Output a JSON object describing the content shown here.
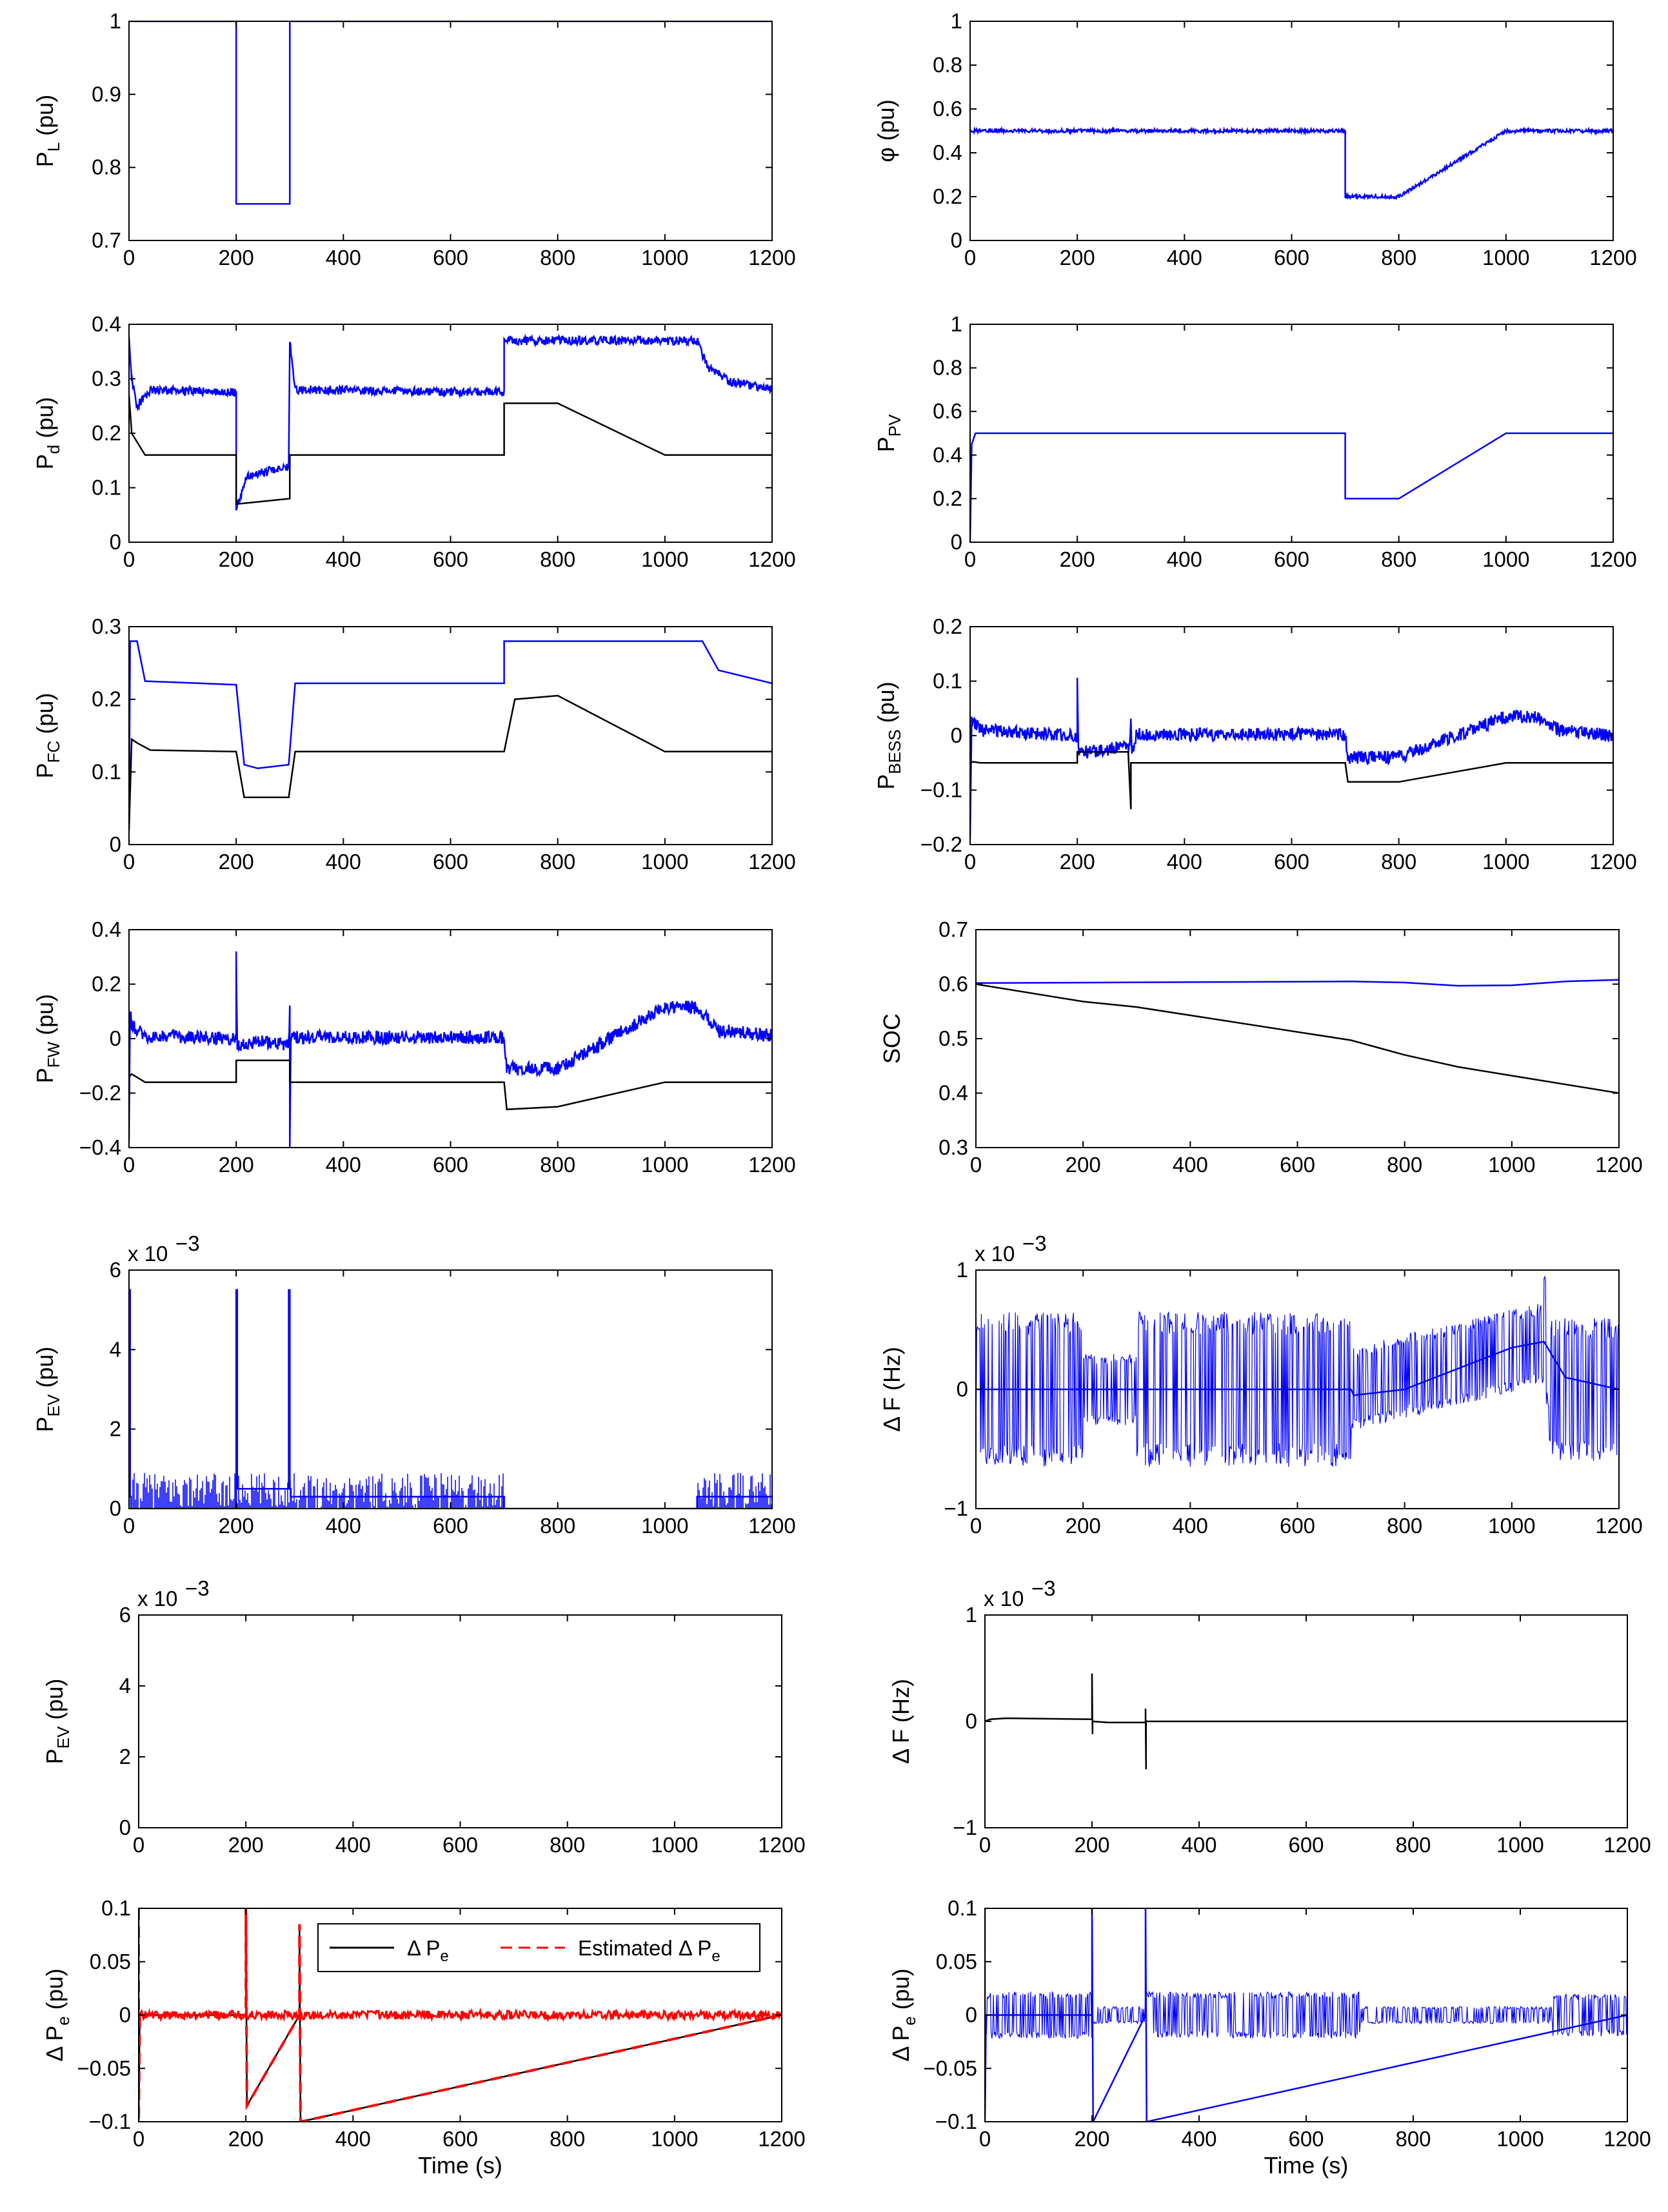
{
  "figure": {
    "description_free": true
  },
  "colors": {
    "blue": "#0000ff",
    "black": "#000000",
    "red": "#ff0000"
  },
  "chart_data": [
    {
      "id": "pl",
      "type": "line",
      "ylabel": {
        "main": "P",
        "sub": "L",
        "unit": " (pu)"
      },
      "xlim": [
        0,
        1200
      ],
      "ylim": [
        0.7,
        1
      ],
      "xticks": [
        "0",
        "200",
        "400",
        "600",
        "800",
        "1000",
        "1200"
      ],
      "yticks": [
        "0.7",
        "0.8",
        "0.9",
        "1"
      ],
      "series": [
        {
          "color": "blue",
          "x": [
            0,
            200,
            200,
            300,
            300,
            1200
          ],
          "y": [
            1,
            1,
            0.75,
            0.75,
            1,
            1
          ]
        }
      ]
    },
    {
      "id": "phi",
      "type": "line",
      "ylabel": {
        "main": "φ",
        "sub": "",
        "unit": " (pu)"
      },
      "xlim": [
        0,
        1200
      ],
      "ylim": [
        0,
        1
      ],
      "xticks": [
        "0",
        "200",
        "400",
        "600",
        "800",
        "1000",
        "1200"
      ],
      "yticks": [
        "0",
        "0.2",
        "0.4",
        "0.6",
        "0.8",
        "1"
      ],
      "series": [
        {
          "color": "blue",
          "noise": 0.008,
          "x": [
            0,
            700,
            700,
            800,
            1000,
            1200
          ],
          "y": [
            0.5,
            0.5,
            0.2,
            0.2,
            0.5,
            0.5
          ]
        }
      ]
    },
    {
      "id": "pd",
      "type": "line",
      "ylabel": {
        "main": "P",
        "sub": "d",
        "unit": " (pu)"
      },
      "xlim": [
        0,
        1200
      ],
      "ylim": [
        0,
        0.4
      ],
      "xticks": [
        "0",
        "200",
        "400",
        "600",
        "800",
        "1000",
        "1200"
      ],
      "yticks": [
        "0",
        "0.1",
        "0.2",
        "0.3",
        "0.4"
      ],
      "series": [
        {
          "color": "blue",
          "noise": 0.008,
          "x": [
            0,
            5,
            15,
            40,
            200,
            200,
            220,
            298,
            300,
            310,
            700,
            700,
            1060,
            1080,
            1120,
            1200
          ],
          "y": [
            0.37,
            0.3,
            0.25,
            0.28,
            0.275,
            0.06,
            0.12,
            0.14,
            0.37,
            0.28,
            0.275,
            0.37,
            0.37,
            0.32,
            0.295,
            0.28
          ]
        },
        {
          "color": "black",
          "x": [
            0,
            5,
            30,
            200,
            200,
            300,
            300,
            700,
            700,
            800,
            1000,
            1200
          ],
          "y": [
            0.27,
            0.2,
            0.16,
            0.16,
            0.07,
            0.08,
            0.16,
            0.16,
            0.255,
            0.255,
            0.16,
            0.16
          ]
        }
      ]
    },
    {
      "id": "ppv",
      "type": "line",
      "ylabel": {
        "main": "P",
        "sub": "PV",
        "unit": ""
      },
      "xlim": [
        0,
        1200
      ],
      "ylim": [
        0,
        1
      ],
      "xticks": [
        "0",
        "200",
        "400",
        "600",
        "800",
        "1000",
        "1200"
      ],
      "yticks": [
        "0",
        "0.2",
        "0.4",
        "0.6",
        "0.8",
        "1"
      ],
      "series": [
        {
          "color": "blue",
          "x": [
            0,
            3,
            10,
            700,
            700,
            800,
            1000,
            1200
          ],
          "y": [
            0,
            0.45,
            0.5,
            0.5,
            0.2,
            0.2,
            0.5,
            0.5
          ]
        }
      ]
    },
    {
      "id": "pfc",
      "type": "line",
      "ylabel": {
        "main": "P",
        "sub": "FC",
        "unit": " (pu)"
      },
      "xlim": [
        0,
        1200
      ],
      "ylim": [
        0,
        0.3
      ],
      "xticks": [
        "0",
        "200",
        "400",
        "600",
        "800",
        "1000",
        "1200"
      ],
      "yticks": [
        "0",
        "0.1",
        "0.2",
        "0.3"
      ],
      "series": [
        {
          "color": "blue",
          "x": [
            0,
            2,
            15,
            30,
            200,
            215,
            240,
            298,
            310,
            700,
            700,
            1070,
            1100,
            1200
          ],
          "y": [
            0.02,
            0.28,
            0.28,
            0.225,
            0.22,
            0.11,
            0.105,
            0.11,
            0.222,
            0.222,
            0.28,
            0.28,
            0.24,
            0.222
          ]
        },
        {
          "color": "black",
          "x": [
            0,
            5,
            15,
            40,
            200,
            215,
            298,
            310,
            700,
            720,
            800,
            1000,
            1200
          ],
          "y": [
            0.02,
            0.145,
            0.14,
            0.13,
            0.128,
            0.065,
            0.065,
            0.128,
            0.128,
            0.2,
            0.205,
            0.128,
            0.128
          ]
        }
      ]
    },
    {
      "id": "pbess",
      "type": "line",
      "ylabel": {
        "main": "P",
        "sub": "BESS",
        "unit": " (pu)"
      },
      "xlim": [
        0,
        1200
      ],
      "ylim": [
        -0.2,
        0.2
      ],
      "xticks": [
        "0",
        "200",
        "400",
        "600",
        "800",
        "1000",
        "1200"
      ],
      "yticks": [
        "−0.2",
        "−0.1",
        "0",
        "0.1",
        "0.2"
      ],
      "series": [
        {
          "color": "blue",
          "noise": 0.012,
          "x": [
            0,
            3,
            20,
            200,
            200,
            202,
            205,
            220,
            298,
            300,
            302,
            310,
            700,
            705,
            800,
            1000,
            1060,
            1100,
            1200
          ],
          "y": [
            -0.2,
            0.03,
            0.01,
            0.0,
            0.105,
            -0.02,
            -0.03,
            -0.03,
            -0.02,
            0.03,
            -0.03,
            0.002,
            0.002,
            -0.04,
            -0.04,
            0.035,
            0.035,
            0.01,
            0.0
          ]
        },
        {
          "color": "black",
          "x": [
            0,
            5,
            20,
            200,
            200,
            295,
            300,
            300,
            302,
            310,
            700,
            705,
            800,
            1000,
            1200
          ],
          "y": [
            -0.05,
            -0.048,
            -0.05,
            -0.05,
            -0.03,
            -0.03,
            -0.135,
            -0.05,
            -0.05,
            -0.05,
            -0.05,
            -0.085,
            -0.085,
            -0.05,
            -0.05
          ]
        }
      ]
    },
    {
      "id": "pfw",
      "type": "line",
      "ylabel": {
        "main": "P",
        "sub": "FW",
        "unit": " (pu)"
      },
      "xlim": [
        0,
        1200
      ],
      "ylim": [
        -0.4,
        0.4
      ],
      "xticks": [
        "0",
        "200",
        "400",
        "600",
        "800",
        "1000",
        "1200"
      ],
      "yticks": [
        "−0.4",
        "−0.2",
        "0",
        "0.2",
        "0.4"
      ],
      "series": [
        {
          "color": "blue",
          "noise": 0.025,
          "x": [
            0,
            2,
            5,
            30,
            200,
            200,
            202,
            205,
            240,
            298,
            300,
            300,
            302,
            310,
            700,
            705,
            800,
            1000,
            1060,
            1100,
            1200
          ],
          "y": [
            -0.4,
            0.1,
            0.05,
            0.01,
            0.0,
            0.31,
            -0.02,
            -0.03,
            -0.01,
            -0.02,
            0.1,
            -0.4,
            0.0,
            0.005,
            0.005,
            -0.11,
            -0.11,
            0.115,
            0.115,
            0.03,
            0.01
          ]
        },
        {
          "color": "black",
          "x": [
            0,
            5,
            30,
            200,
            200,
            300,
            300,
            700,
            705,
            800,
            1000,
            1200
          ],
          "y": [
            -0.14,
            -0.13,
            -0.16,
            -0.16,
            -0.08,
            -0.08,
            -0.16,
            -0.16,
            -0.26,
            -0.25,
            -0.16,
            -0.16
          ]
        }
      ]
    },
    {
      "id": "soc",
      "type": "line",
      "ylabel": {
        "main": "SOC",
        "sub": "",
        "unit": ""
      },
      "xlim": [
        0,
        1200
      ],
      "ylim": [
        0.3,
        0.7
      ],
      "xticks": [
        "0",
        "200",
        "400",
        "600",
        "800",
        "1000",
        "1200"
      ],
      "yticks": [
        "0.3",
        "0.4",
        "0.5",
        "0.6",
        "0.7"
      ],
      "series": [
        {
          "color": "blue",
          "x": [
            0,
            700,
            800,
            900,
            1000,
            1100,
            1200
          ],
          "y": [
            0.602,
            0.605,
            0.603,
            0.597,
            0.598,
            0.605,
            0.608
          ]
        },
        {
          "color": "black",
          "x": [
            0,
            200,
            300,
            700,
            800,
            900,
            1000,
            1200
          ],
          "y": [
            0.6,
            0.568,
            0.558,
            0.497,
            0.47,
            0.448,
            0.432,
            0.4
          ]
        }
      ]
    },
    {
      "id": "pev1",
      "type": "line",
      "ylabel": {
        "main": "P",
        "sub": "EV",
        "unit": "  (pu)"
      },
      "exponent": "x 10",
      "xlim": [
        0,
        1200
      ],
      "ylim": [
        0,
        6
      ],
      "xticks": [
        "0",
        "200",
        "400",
        "600",
        "800",
        "1000",
        "1200"
      ],
      "yticks": [
        "0",
        "2",
        "4",
        "6"
      ],
      "series": [
        {
          "color": "blue",
          "x": [
            0,
            0,
            2,
            2,
            4,
            4,
            200,
            200,
            202,
            202,
            298,
            298,
            300,
            300,
            302,
            302,
            700,
            700,
            1060,
            1060,
            1200
          ],
          "y": [
            0,
            5.5,
            5.5,
            0.3,
            0.3,
            0,
            0,
            5.5,
            5.5,
            0.5,
            0.5,
            5.5,
            5.5,
            0.5,
            0.5,
            0.3,
            0.3,
            0,
            0,
            0.3,
            0.3
          ]
        }
      ]
    },
    {
      "id": "df1",
      "type": "line",
      "ylabel": {
        "main": "Δ F",
        "sub": "",
        "unit": "  (Hz)"
      },
      "exponent": "x 10",
      "xlim": [
        0,
        1200
      ],
      "ylim": [
        -1,
        1
      ],
      "xticks": [
        "0",
        "200",
        "400",
        "600",
        "800",
        "1000",
        "1200"
      ],
      "yticks": [
        "−1",
        "0",
        "1"
      ],
      "series": [
        {
          "color": "blue",
          "x": [
            0,
            200,
            300,
            700,
            705,
            800,
            1000,
            1060,
            1100,
            1200
          ],
          "y": [
            0,
            0,
            0,
            0,
            -0.05,
            0,
            0.35,
            0.4,
            0.1,
            0
          ]
        }
      ]
    },
    {
      "id": "pev2",
      "type": "line",
      "ylabel": {
        "main": "P",
        "sub": "EV",
        "unit": " (pu)"
      },
      "exponent": "x 10",
      "xlim": [
        0,
        1200
      ],
      "ylim": [
        0,
        6
      ],
      "xticks": [
        "0",
        "200",
        "400",
        "600",
        "800",
        "1000",
        "1200"
      ],
      "yticks": [
        "0",
        "2",
        "4",
        "6"
      ],
      "series": []
    },
    {
      "id": "df2",
      "type": "line",
      "ylabel": {
        "main": "Δ F",
        "sub": "",
        "unit": " (Hz)"
      },
      "exponent": "x 10",
      "xlim": [
        0,
        1200
      ],
      "ylim": [
        -1,
        1
      ],
      "xticks": [
        "0",
        "200",
        "400",
        "600",
        "800",
        "1000",
        "1200"
      ],
      "yticks": [
        "−1",
        "0",
        "1"
      ],
      "series": [
        {
          "color": "black",
          "x": [
            0,
            10,
            40,
            200,
            200,
            201,
            201,
            230,
            300,
            300,
            301,
            301,
            700,
            1200
          ],
          "y": [
            0,
            0.02,
            0.03,
            0.02,
            0.45,
            -0.12,
            0,
            -0.01,
            -0.01,
            0.12,
            -0.45,
            0,
            0,
            0
          ]
        }
      ]
    },
    {
      "id": "dpe1",
      "type": "line",
      "ylabel": {
        "main": "Δ P",
        "sub": "e",
        "unit": " (pu)"
      },
      "xlabel": "Time (s)",
      "xlim": [
        0,
        1200
      ],
      "ylim": [
        -0.1,
        0.1
      ],
      "xticks": [
        "0",
        "200",
        "400",
        "600",
        "800",
        "1000",
        "1200"
      ],
      "yticks": [
        "−0.1",
        "−0.05",
        "0",
        "0.05",
        "0.1"
      ],
      "legend": {
        "location": "top-right",
        "entries": [
          {
            "text": "Δ P",
            "sub": "e",
            "color": "black",
            "dash": false
          },
          {
            "text": "Estimated Δ P",
            "sub": "e",
            "color": "red",
            "dash": true
          }
        ]
      },
      "series": [
        {
          "color": "black",
          "x": [
            0,
            0,
            2,
            200,
            200,
            202,
            300,
            300,
            302,
            1200
          ],
          "y": [
            0.1,
            -0.1,
            0,
            0,
            0.1,
            -0.085,
            0,
            0.085,
            -0.1,
            0
          ]
        },
        {
          "color": "red",
          "dash": true,
          "x": [
            0,
            0,
            2,
            200,
            200,
            202,
            300,
            300,
            302,
            1200
          ],
          "y": [
            0.1,
            -0.1,
            0,
            0,
            0.1,
            -0.085,
            0,
            0.085,
            -0.1,
            0
          ]
        }
      ]
    },
    {
      "id": "dpe2",
      "type": "line",
      "ylabel": {
        "main": "Δ P",
        "sub": "e",
        "unit": " (pu)"
      },
      "xlabel": "Time (s)",
      "xlim": [
        0,
        1200
      ],
      "ylim": [
        -0.1,
        0.1
      ],
      "xticks": [
        "0",
        "200",
        "400",
        "600",
        "800",
        "1000",
        "1200"
      ],
      "yticks": [
        "−0.1",
        "−0.05",
        "0",
        "0.05",
        "0.1"
      ],
      "series": [
        {
          "color": "blue",
          "x": [
            0,
            0,
            2,
            200,
            200,
            202,
            300,
            300,
            302,
            1200
          ],
          "y": [
            0.1,
            -0.1,
            0,
            0,
            0.1,
            -0.1,
            0,
            0.1,
            -0.1,
            0
          ]
        }
      ]
    }
  ]
}
